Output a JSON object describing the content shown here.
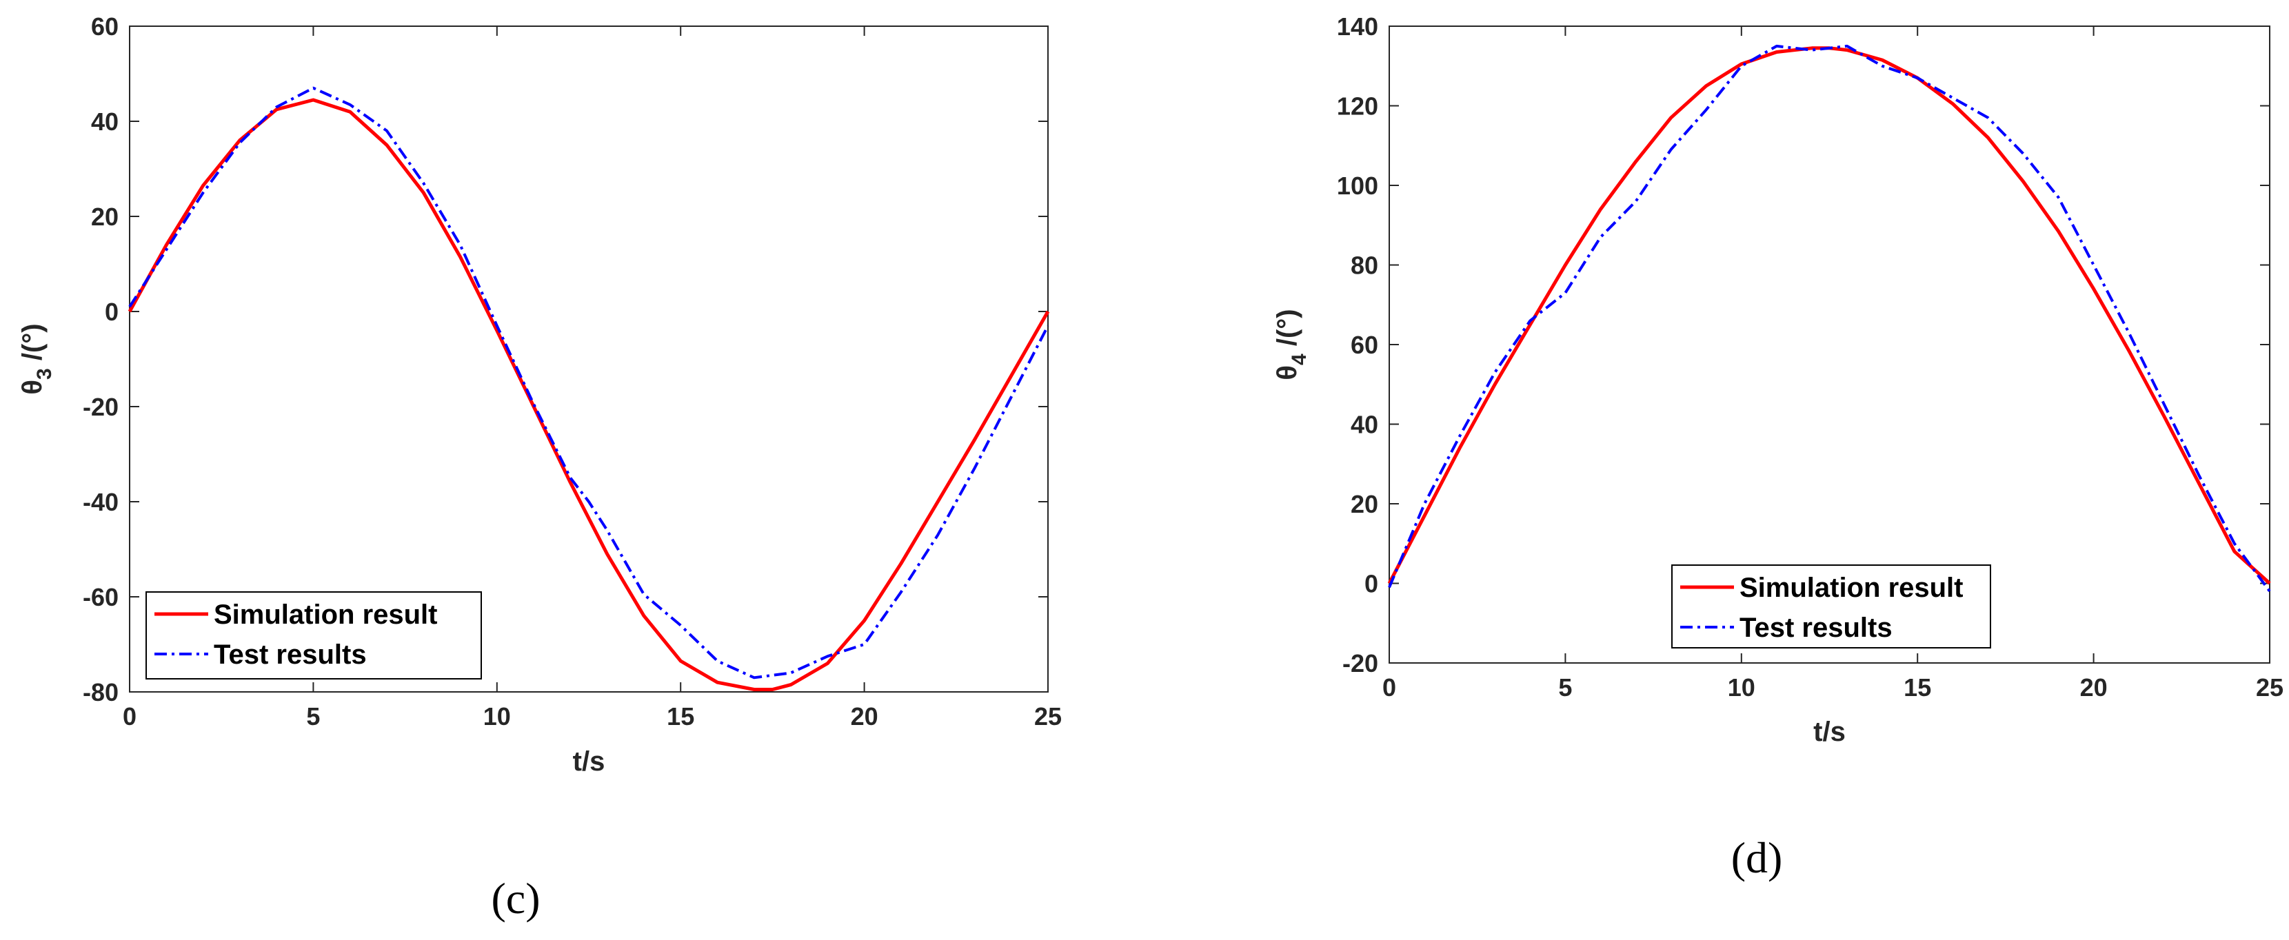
{
  "colors": {
    "simulation": "#ff0000",
    "test": "#0000ff",
    "axes": "#262626"
  },
  "chart_data": [
    {
      "type": "line",
      "panel_label": "(c)",
      "xlabel": "t/s",
      "ylabel": {
        "base": "θ",
        "subscript": "3",
        "suffix": " /(°)"
      },
      "xlim": [
        0,
        25
      ],
      "ylim": [
        -80,
        60
      ],
      "xticks": [
        0,
        5,
        10,
        15,
        20,
        25
      ],
      "yticks": [
        -80,
        -60,
        -40,
        -20,
        0,
        20,
        40,
        60
      ],
      "grid": false,
      "legend_position": "bottom-left",
      "series": [
        {
          "name": "Simulation result",
          "style": "solid",
          "x": [
            0,
            1,
            2,
            3,
            4,
            5,
            6,
            7,
            8,
            9,
            10,
            11,
            12,
            13,
            14,
            15,
            16,
            17,
            17.5,
            18,
            19,
            20,
            21,
            22,
            23,
            24,
            25
          ],
          "y": [
            0,
            14,
            26.5,
            36,
            42.5,
            44.5,
            42,
            35,
            25,
            11.5,
            -4,
            -20,
            -36,
            -51,
            -64,
            -73.5,
            -78,
            -79.5,
            -79.5,
            -78.5,
            -74,
            -65,
            -53,
            -40,
            -27,
            -13.5,
            0
          ]
        },
        {
          "name": "Test results",
          "style": "dashdot",
          "x": [
            0,
            1,
            2,
            3,
            4,
            5,
            6,
            7,
            8,
            9,
            10,
            11,
            12,
            12.5,
            13,
            14,
            15,
            16,
            17,
            18,
            19,
            20,
            21,
            22,
            23,
            24,
            25
          ],
          "y": [
            1,
            13,
            25,
            35.5,
            43,
            47,
            43.5,
            38,
            27,
            14,
            -3,
            -19.5,
            -35,
            -40,
            -46,
            -59.5,
            -66,
            -73.5,
            -77,
            -76,
            -72.5,
            -70,
            -59,
            -47,
            -33,
            -18,
            -3
          ]
        }
      ]
    },
    {
      "type": "line",
      "panel_label": "(d)",
      "xlabel": "t/s",
      "ylabel": {
        "base": "θ",
        "subscript": "4",
        "suffix": " /(°)"
      },
      "xlim": [
        0,
        25
      ],
      "ylim": [
        -20,
        140
      ],
      "xticks": [
        0,
        5,
        10,
        15,
        20,
        25
      ],
      "yticks": [
        -20,
        0,
        20,
        40,
        60,
        80,
        100,
        120,
        140
      ],
      "grid": false,
      "legend_position": "bottom-center",
      "series": [
        {
          "name": "Simulation result",
          "style": "solid",
          "x": [
            0,
            1,
            2,
            3,
            4,
            5,
            6,
            7,
            8,
            9,
            10,
            11,
            12,
            12.5,
            13,
            14,
            15,
            16,
            17,
            18,
            19,
            20,
            21,
            22,
            23,
            24,
            25
          ],
          "y": [
            0,
            17,
            34,
            50,
            65,
            80,
            94,
            106,
            117,
            125,
            130.5,
            133.5,
            134.5,
            134.5,
            134,
            131.5,
            127,
            120.5,
            112,
            101,
            88.5,
            74,
            58.5,
            42,
            25,
            8,
            0
          ]
        },
        {
          "name": "Test results",
          "style": "dashdot",
          "x": [
            0,
            1,
            2,
            3,
            4,
            5,
            6,
            7,
            8,
            9,
            10,
            11,
            12,
            13,
            14,
            15,
            16,
            17,
            18,
            19,
            20,
            21,
            22,
            23,
            24,
            25
          ],
          "y": [
            -1,
            20,
            37,
            53,
            66,
            73,
            87,
            96,
            109,
            119,
            130,
            135,
            134,
            135,
            130,
            127,
            122,
            117,
            108,
            97,
            80,
            63,
            45,
            27,
            10,
            -2
          ]
        }
      ]
    }
  ]
}
